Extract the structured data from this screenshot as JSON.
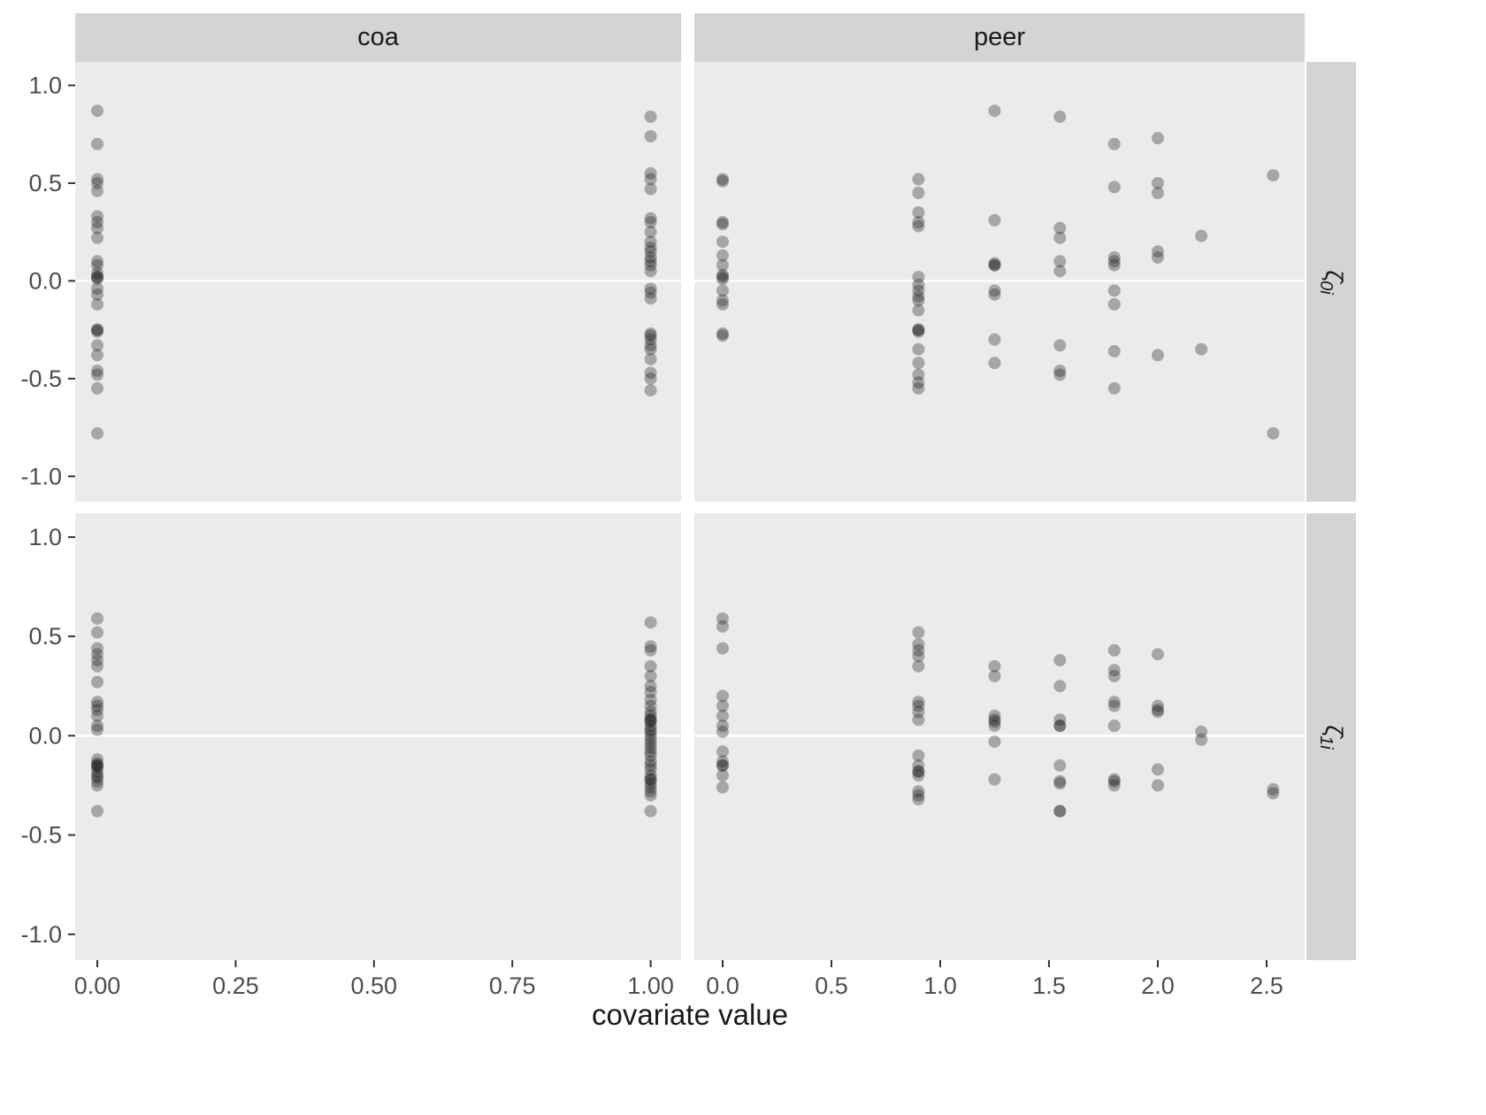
{
  "figure": {
    "xlabel": "covariate value",
    "facet_cols": [
      {
        "id": "coa",
        "label": "coa"
      },
      {
        "id": "peer",
        "label": "peer"
      }
    ],
    "facet_rows": [
      {
        "id": "zeta0",
        "symbol": "ζ̂",
        "sub": "0i"
      },
      {
        "id": "zeta1",
        "symbol": "ζ̂",
        "sub": "1i"
      }
    ]
  },
  "chart_data": {
    "type": "scatter",
    "title": "",
    "xlabel": "covariate value",
    "ylabel": "",
    "legend": "none",
    "grid": "zero-line-only",
    "facets": {
      "columns": [
        "coa",
        "peer"
      ],
      "rows": [
        "ζ̂0i",
        "ζ̂1i"
      ]
    },
    "point_style": {
      "color": "#1a1a1a",
      "opacity": 0.33,
      "radius": 7
    },
    "colors": {
      "panel_bg": "#ebebeb",
      "strip_bg": "#d4d4d4",
      "zero_line": "#ffffff",
      "tick": "#333333",
      "tick_label": "#4d4d4d"
    },
    "y_axis": {
      "ticks": [
        1.0,
        0.5,
        0.0,
        -0.5,
        -1.0
      ],
      "tick_labels": [
        "1.0",
        "0.5",
        "0.0",
        "-0.5",
        "-1.0"
      ],
      "domain": [
        -1.13,
        1.12
      ]
    },
    "x_axes": {
      "coa": {
        "ticks": [
          0,
          0.25,
          0.5,
          0.75,
          1.0
        ],
        "tick_labels": [
          "0.00",
          "0.25",
          "0.50",
          "0.75",
          "1.00"
        ],
        "domain": [
          -0.04,
          1.055
        ]
      },
      "peer": {
        "ticks": [
          0,
          0.5,
          1.0,
          1.5,
          2.0,
          2.5
        ],
        "tick_labels": [
          "0.0",
          "0.5",
          "1.0",
          "1.5",
          "2.0",
          "2.5"
        ],
        "domain": [
          -0.13,
          2.675
        ]
      }
    },
    "panels": [
      {
        "row": "zeta0",
        "col": "coa",
        "points": [
          [
            0,
            0.87
          ],
          [
            0,
            0.7
          ],
          [
            0,
            0.52
          ],
          [
            0,
            0.5
          ],
          [
            0,
            0.46
          ],
          [
            0,
            0.33
          ],
          [
            0,
            0.3
          ],
          [
            0,
            0.27
          ],
          [
            0,
            0.22
          ],
          [
            0,
            0.1
          ],
          [
            0,
            0.08
          ],
          [
            0,
            0.04
          ],
          [
            0,
            0.02
          ],
          [
            0,
            0.02
          ],
          [
            0,
            0.01
          ],
          [
            0,
            -0.04
          ],
          [
            0,
            -0.07
          ],
          [
            0,
            -0.12
          ],
          [
            0,
            -0.25
          ],
          [
            0,
            -0.25
          ],
          [
            0,
            -0.26
          ],
          [
            0,
            -0.33
          ],
          [
            0,
            -0.38
          ],
          [
            0,
            -0.46
          ],
          [
            0,
            -0.48
          ],
          [
            0,
            -0.55
          ],
          [
            0,
            -0.78
          ],
          [
            1,
            0.84
          ],
          [
            1,
            0.74
          ],
          [
            1,
            0.55
          ],
          [
            1,
            0.52
          ],
          [
            1,
            0.47
          ],
          [
            1,
            0.32
          ],
          [
            1,
            0.3
          ],
          [
            1,
            0.25
          ],
          [
            1,
            0.2
          ],
          [
            1,
            0.17
          ],
          [
            1,
            0.15
          ],
          [
            1,
            0.12
          ],
          [
            1,
            0.1
          ],
          [
            1,
            0.08
          ],
          [
            1,
            0.05
          ],
          [
            1,
            -0.04
          ],
          [
            1,
            -0.06
          ],
          [
            1,
            -0.09
          ],
          [
            1,
            -0.27
          ],
          [
            1,
            -0.28
          ],
          [
            1,
            -0.3
          ],
          [
            1,
            -0.33
          ],
          [
            1,
            -0.35
          ],
          [
            1,
            -0.4
          ],
          [
            1,
            -0.47
          ],
          [
            1,
            -0.5
          ],
          [
            1,
            -0.56
          ]
        ]
      },
      {
        "row": "zeta0",
        "col": "peer",
        "points": [
          [
            0,
            0.52
          ],
          [
            0,
            0.51
          ],
          [
            0,
            0.3
          ],
          [
            0,
            0.29
          ],
          [
            0,
            0.2
          ],
          [
            0,
            0.13
          ],
          [
            0,
            0.08
          ],
          [
            0,
            0.03
          ],
          [
            0,
            0.02
          ],
          [
            0,
            0.01
          ],
          [
            0,
            -0.05
          ],
          [
            0,
            -0.1
          ],
          [
            0,
            -0.12
          ],
          [
            0,
            -0.27
          ],
          [
            0,
            -0.28
          ],
          [
            0.9,
            0.52
          ],
          [
            0.9,
            0.45
          ],
          [
            0.9,
            0.35
          ],
          [
            0.9,
            0.3
          ],
          [
            0.9,
            0.28
          ],
          [
            0.9,
            0.02
          ],
          [
            0.9,
            -0.02
          ],
          [
            0.9,
            -0.05
          ],
          [
            0.9,
            -0.08
          ],
          [
            0.9,
            -0.1
          ],
          [
            0.9,
            -0.15
          ],
          [
            0.9,
            -0.25
          ],
          [
            0.9,
            -0.25
          ],
          [
            0.9,
            -0.26
          ],
          [
            0.9,
            -0.35
          ],
          [
            0.9,
            -0.42
          ],
          [
            0.9,
            -0.48
          ],
          [
            0.9,
            -0.52
          ],
          [
            0.9,
            -0.55
          ],
          [
            1.25,
            0.87
          ],
          [
            1.25,
            0.31
          ],
          [
            1.25,
            0.09
          ],
          [
            1.25,
            0.08
          ],
          [
            1.25,
            0.08
          ],
          [
            1.25,
            -0.05
          ],
          [
            1.25,
            -0.07
          ],
          [
            1.25,
            -0.3
          ],
          [
            1.25,
            -0.42
          ],
          [
            1.55,
            0.84
          ],
          [
            1.55,
            0.27
          ],
          [
            1.55,
            0.22
          ],
          [
            1.55,
            0.1
          ],
          [
            1.55,
            0.05
          ],
          [
            1.55,
            -0.33
          ],
          [
            1.55,
            -0.46
          ],
          [
            1.55,
            -0.48
          ],
          [
            1.8,
            0.7
          ],
          [
            1.8,
            0.48
          ],
          [
            1.8,
            0.12
          ],
          [
            1.8,
            0.1
          ],
          [
            1.8,
            0.08
          ],
          [
            1.8,
            -0.05
          ],
          [
            1.8,
            -0.12
          ],
          [
            1.8,
            -0.36
          ],
          [
            1.8,
            -0.55
          ],
          [
            2.0,
            0.73
          ],
          [
            2.0,
            0.5
          ],
          [
            2.0,
            0.45
          ],
          [
            2.0,
            0.15
          ],
          [
            2.0,
            0.12
          ],
          [
            2.0,
            -0.38
          ],
          [
            2.2,
            0.23
          ],
          [
            2.2,
            -0.35
          ],
          [
            2.53,
            0.54
          ],
          [
            2.53,
            -0.78
          ]
        ]
      },
      {
        "row": "zeta1",
        "col": "coa",
        "points": [
          [
            0,
            0.59
          ],
          [
            0,
            0.52
          ],
          [
            0,
            0.44
          ],
          [
            0,
            0.41
          ],
          [
            0,
            0.38
          ],
          [
            0,
            0.35
          ],
          [
            0,
            0.27
          ],
          [
            0,
            0.17
          ],
          [
            0,
            0.15
          ],
          [
            0,
            0.13
          ],
          [
            0,
            0.1
          ],
          [
            0,
            0.05
          ],
          [
            0,
            0.03
          ],
          [
            0,
            -0.12
          ],
          [
            0,
            -0.14
          ],
          [
            0,
            -0.15
          ],
          [
            0,
            -0.15
          ],
          [
            0,
            -0.16
          ],
          [
            0,
            -0.18
          ],
          [
            0,
            -0.2
          ],
          [
            0,
            -0.21
          ],
          [
            0,
            -0.23
          ],
          [
            0,
            -0.25
          ],
          [
            0,
            -0.38
          ],
          [
            1,
            0.57
          ],
          [
            1,
            0.45
          ],
          [
            1,
            0.43
          ],
          [
            1,
            0.35
          ],
          [
            1,
            0.3
          ],
          [
            1,
            0.25
          ],
          [
            1,
            0.22
          ],
          [
            1,
            0.18
          ],
          [
            1,
            0.15
          ],
          [
            1,
            0.12
          ],
          [
            1,
            0.1
          ],
          [
            1,
            0.08
          ],
          [
            1,
            0.08
          ],
          [
            1,
            0.07
          ],
          [
            1,
            0.05
          ],
          [
            1,
            0.03
          ],
          [
            1,
            0.02
          ],
          [
            1,
            0.0
          ],
          [
            1,
            -0.02
          ],
          [
            1,
            -0.04
          ],
          [
            1,
            -0.06
          ],
          [
            1,
            -0.08
          ],
          [
            1,
            -0.1
          ],
          [
            1,
            -0.13
          ],
          [
            1,
            -0.15
          ],
          [
            1,
            -0.17
          ],
          [
            1,
            -0.2
          ],
          [
            1,
            -0.22
          ],
          [
            1,
            -0.22
          ],
          [
            1,
            -0.24
          ],
          [
            1,
            -0.26
          ],
          [
            1,
            -0.28
          ],
          [
            1,
            -0.3
          ],
          [
            1,
            -0.38
          ]
        ]
      },
      {
        "row": "zeta1",
        "col": "peer",
        "points": [
          [
            0,
            0.59
          ],
          [
            0,
            0.55
          ],
          [
            0,
            0.44
          ],
          [
            0,
            0.2
          ],
          [
            0,
            0.15
          ],
          [
            0,
            0.1
          ],
          [
            0,
            0.05
          ],
          [
            0,
            0.02
          ],
          [
            0,
            -0.08
          ],
          [
            0,
            -0.13
          ],
          [
            0,
            -0.15
          ],
          [
            0,
            -0.15
          ],
          [
            0,
            -0.2
          ],
          [
            0,
            -0.26
          ],
          [
            0.9,
            0.52
          ],
          [
            0.9,
            0.46
          ],
          [
            0.9,
            0.43
          ],
          [
            0.9,
            0.4
          ],
          [
            0.9,
            0.35
          ],
          [
            0.9,
            0.17
          ],
          [
            0.9,
            0.15
          ],
          [
            0.9,
            0.12
          ],
          [
            0.9,
            0.08
          ],
          [
            0.9,
            -0.1
          ],
          [
            0.9,
            -0.15
          ],
          [
            0.9,
            -0.18
          ],
          [
            0.9,
            -0.18
          ],
          [
            0.9,
            -0.2
          ],
          [
            0.9,
            -0.28
          ],
          [
            0.9,
            -0.3
          ],
          [
            0.9,
            -0.32
          ],
          [
            1.25,
            0.35
          ],
          [
            1.25,
            0.3
          ],
          [
            1.25,
            0.1
          ],
          [
            1.25,
            0.08
          ],
          [
            1.25,
            0.07
          ],
          [
            1.25,
            0.05
          ],
          [
            1.25,
            -0.03
          ],
          [
            1.25,
            -0.22
          ],
          [
            1.55,
            0.38
          ],
          [
            1.55,
            0.25
          ],
          [
            1.55,
            0.08
          ],
          [
            1.55,
            0.05
          ],
          [
            1.55,
            0.05
          ],
          [
            1.55,
            -0.15
          ],
          [
            1.55,
            -0.23
          ],
          [
            1.55,
            -0.24
          ],
          [
            1.55,
            -0.38
          ],
          [
            1.55,
            -0.38
          ],
          [
            1.8,
            0.43
          ],
          [
            1.8,
            0.33
          ],
          [
            1.8,
            0.3
          ],
          [
            1.8,
            0.17
          ],
          [
            1.8,
            0.15
          ],
          [
            1.8,
            0.05
          ],
          [
            1.8,
            -0.22
          ],
          [
            1.8,
            -0.23
          ],
          [
            1.8,
            -0.25
          ],
          [
            2.0,
            0.41
          ],
          [
            2.0,
            0.15
          ],
          [
            2.0,
            0.13
          ],
          [
            2.0,
            0.12
          ],
          [
            2.0,
            -0.17
          ],
          [
            2.0,
            -0.25
          ],
          [
            2.2,
            0.02
          ],
          [
            2.2,
            -0.02
          ],
          [
            2.53,
            -0.27
          ],
          [
            2.53,
            -0.29
          ]
        ]
      }
    ]
  }
}
